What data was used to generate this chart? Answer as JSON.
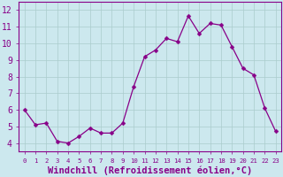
{
  "x": [
    0,
    1,
    2,
    3,
    4,
    5,
    6,
    7,
    8,
    9,
    10,
    11,
    12,
    13,
    14,
    15,
    16,
    17,
    18,
    19,
    20,
    21,
    22,
    23
  ],
  "y": [
    6.0,
    5.1,
    5.2,
    4.1,
    4.0,
    4.4,
    4.9,
    4.6,
    4.6,
    5.2,
    7.4,
    9.2,
    9.6,
    10.3,
    10.1,
    11.65,
    10.6,
    11.2,
    11.1,
    9.8,
    8.5,
    8.1,
    6.1,
    4.7
  ],
  "line_color": "#880088",
  "marker": "D",
  "marker_size": 2.5,
  "bg_color": "#cce8ee",
  "grid_color": "#aacccc",
  "xlabel": "Windchill (Refroidissement éolien,°C)",
  "xlabel_color": "#880088",
  "xlim": [
    -0.5,
    23.5
  ],
  "ylim": [
    3.5,
    12.5
  ],
  "yticks": [
    4,
    5,
    6,
    7,
    8,
    9,
    10,
    11,
    12
  ],
  "xticks": [
    0,
    1,
    2,
    3,
    4,
    5,
    6,
    7,
    8,
    9,
    10,
    11,
    12,
    13,
    14,
    15,
    16,
    17,
    18,
    19,
    20,
    21,
    22,
    23
  ],
  "tick_label_color": "#880088",
  "spine_color": "#880088",
  "ytick_fontsize": 7,
  "xtick_fontsize": 5.2,
  "xlabel_fontsize": 7.5
}
